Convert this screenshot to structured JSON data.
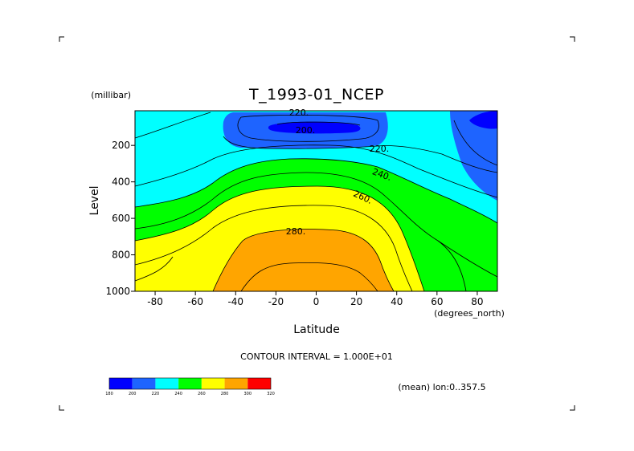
{
  "chart_data": {
    "type": "contour",
    "title": "T_1993-01_NCEP",
    "xlabel": "Latitude",
    "x_unit": "(degrees_north)",
    "ylabel": "Level",
    "y_unit": "(millibar)",
    "xlim": [
      -90,
      90
    ],
    "ylim": [
      1000,
      10
    ],
    "x_ticks": [
      "-80",
      "-60",
      "-40",
      "-20",
      "0",
      "20",
      "40",
      "60",
      "80"
    ],
    "y_ticks": [
      "200",
      "400",
      "600",
      "800",
      "1000"
    ],
    "contour_interval_text": "CONTOUR INTERVAL = 1.000E+01",
    "subtitle_right": "(mean) lon:0..357.5",
    "contour_labels": [
      "220.",
      "200.",
      "220.",
      "240.",
      "260.",
      "280."
    ],
    "colorbar": {
      "levels": [
        "180",
        "200",
        "220",
        "240",
        "260",
        "280",
        "300",
        "320"
      ],
      "colors": [
        "#0000ff",
        "#1e64ff",
        "#00ffff",
        "#00ff00",
        "#ffff00",
        "#ffa500",
        "#ff0000"
      ]
    }
  }
}
